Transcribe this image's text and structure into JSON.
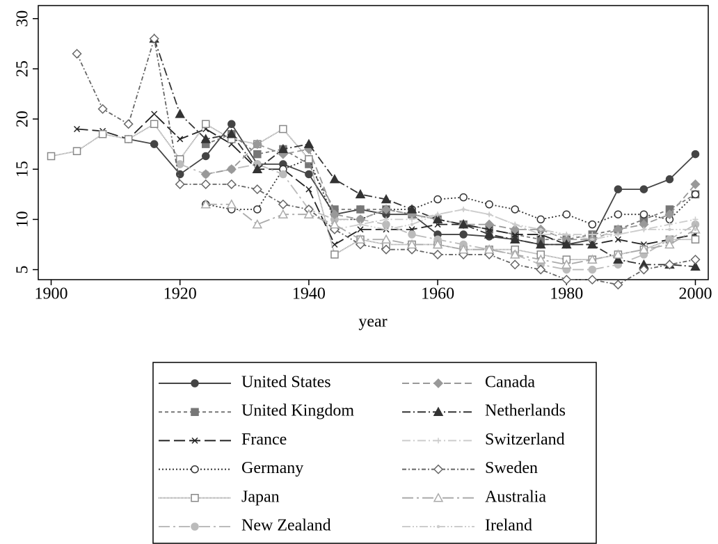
{
  "chart_data": {
    "type": "line",
    "x_label": "year",
    "xlim": [
      1898,
      2002
    ],
    "ylim": [
      4,
      31.3
    ],
    "xticks": [
      1900,
      1920,
      1940,
      1960,
      1980,
      2000
    ],
    "yticks": [
      5,
      10,
      15,
      20,
      25,
      30
    ],
    "legend": "bottom",
    "x": [
      1900,
      1904,
      1908,
      1912,
      1916,
      1920,
      1924,
      1928,
      1932,
      1936,
      1940,
      1944,
      1948,
      1952,
      1956,
      1960,
      1964,
      1968,
      1972,
      1976,
      1980,
      1984,
      1988,
      1992,
      1996,
      2000
    ],
    "series": [
      {
        "name": "United States",
        "color": "#444444",
        "dash": "solid",
        "marker": "circle",
        "values": [
          null,
          null,
          null,
          18,
          17.5,
          14.5,
          16.3,
          19.5,
          15.5,
          15.5,
          14.5,
          10.5,
          11,
          10.5,
          10.5,
          8.5,
          8.5,
          8.3,
          8,
          7.5,
          7.5,
          8,
          13,
          13,
          14,
          16.5
        ]
      },
      {
        "name": "United Kingdom",
        "color": "#777777",
        "dash": "shortdash",
        "marker": "square",
        "values": [
          null,
          null,
          null,
          null,
          null,
          null,
          17.5,
          18.5,
          16.5,
          17,
          15.5,
          11,
          11,
          11,
          10.5,
          10,
          9.5,
          9,
          8.5,
          8,
          8,
          8.5,
          9,
          10,
          11,
          12.5
        ]
      },
      {
        "name": "France",
        "color": "#222222",
        "dash": "longdash",
        "marker": "x",
        "values": [
          null,
          19,
          18.8,
          18,
          20.5,
          18,
          19,
          17.5,
          15,
          15,
          13,
          7.5,
          9,
          9,
          9,
          9.5,
          9.5,
          9,
          8.5,
          8.5,
          7.5,
          7.5,
          8,
          7.5,
          8,
          8.5
        ]
      },
      {
        "name": "Germany",
        "color": "#333333",
        "dash": "dot",
        "marker": "open-circle",
        "values": [
          null,
          null,
          null,
          null,
          null,
          null,
          11.5,
          11,
          11,
          15,
          16,
          10,
          10,
          11,
          11,
          12,
          12.2,
          11.5,
          11,
          10,
          10.5,
          9.5,
          10.5,
          10.5,
          10,
          12.5
        ]
      },
      {
        "name": "Japan",
        "color": "#888888",
        "dash": "dense",
        "marker": "open-square",
        "values": [
          16.3,
          16.8,
          18.5,
          18,
          19.5,
          16,
          19.5,
          18,
          17.5,
          19,
          16,
          6.5,
          8,
          7.5,
          7.5,
          7.5,
          7,
          7,
          7,
          6.5,
          6,
          6,
          6.5,
          7,
          8,
          8
        ]
      },
      {
        "name": "New Zealand",
        "color": "#bbbbbb",
        "dash": "longdashdot",
        "marker": "circle",
        "values": [
          null,
          null,
          null,
          null,
          null,
          15.5,
          14.5,
          15,
          15.5,
          14.5,
          11,
          10,
          10,
          9.5,
          8.5,
          8,
          7.5,
          7,
          6.5,
          5.5,
          5,
          5,
          5.5,
          6.5,
          8,
          9.5
        ]
      },
      {
        "name": "Canada",
        "color": "#999999",
        "dash": "dash",
        "marker": "diamond",
        "values": [
          null,
          null,
          null,
          null,
          null,
          null,
          14.5,
          15,
          17.5,
          16.5,
          17,
          10.5,
          10,
          11,
          10.5,
          10,
          9.5,
          9.5,
          9,
          9,
          8,
          8,
          9,
          9.5,
          10.5,
          13.5
        ]
      },
      {
        "name": "Netherlands",
        "color": "#333333",
        "dash": "dashdot",
        "marker": "triangle",
        "values": [
          null,
          null,
          null,
          null,
          28,
          20.5,
          18,
          18.5,
          15,
          17,
          17.5,
          14,
          12.5,
          12,
          11,
          10,
          9.5,
          8.5,
          8,
          7.5,
          7.5,
          7.5,
          6,
          5.5,
          5.5,
          5.3
        ]
      },
      {
        "name": "Switzerland",
        "color": "#cccccc",
        "dash": "dashdot",
        "marker": "plus",
        "values": [
          null,
          null,
          null,
          null,
          null,
          null,
          null,
          null,
          null,
          null,
          null,
          9,
          9.5,
          10,
          10,
          10.5,
          11,
          10.5,
          9.5,
          8.5,
          8.5,
          8.5,
          8.5,
          9,
          9.5,
          10
        ]
      },
      {
        "name": "Sweden",
        "color": "#666666",
        "dash": "shortdashdot",
        "marker": "open-diamond",
        "values": [
          null,
          26.5,
          21,
          19.5,
          28,
          13.5,
          13.5,
          13.5,
          13,
          11.5,
          11,
          9,
          7.5,
          7,
          7,
          6.5,
          6.5,
          6.5,
          5.5,
          5,
          4,
          4,
          3.5,
          5,
          5.5,
          6
        ]
      },
      {
        "name": "Australia",
        "color": "#aaaaaa",
        "dash": "longdashdot",
        "marker": "open-triangle",
        "values": [
          null,
          null,
          null,
          null,
          null,
          null,
          11.5,
          11.5,
          9.5,
          10.5,
          10.5,
          9.5,
          8,
          8,
          7.5,
          7.5,
          7,
          7,
          6.5,
          6,
          5.5,
          6,
          6.5,
          7,
          7.5,
          9
        ]
      },
      {
        "name": "Ireland",
        "color": "#cccccc",
        "dash": "dashdotdot",
        "marker": "dot",
        "values": [
          null,
          null,
          null,
          null,
          null,
          null,
          null,
          null,
          null,
          null,
          null,
          null,
          9.5,
          9,
          9.5,
          10.5,
          11,
          10.5,
          9.5,
          9,
          8.5,
          8,
          8.5,
          9,
          9,
          9
        ]
      }
    ]
  }
}
